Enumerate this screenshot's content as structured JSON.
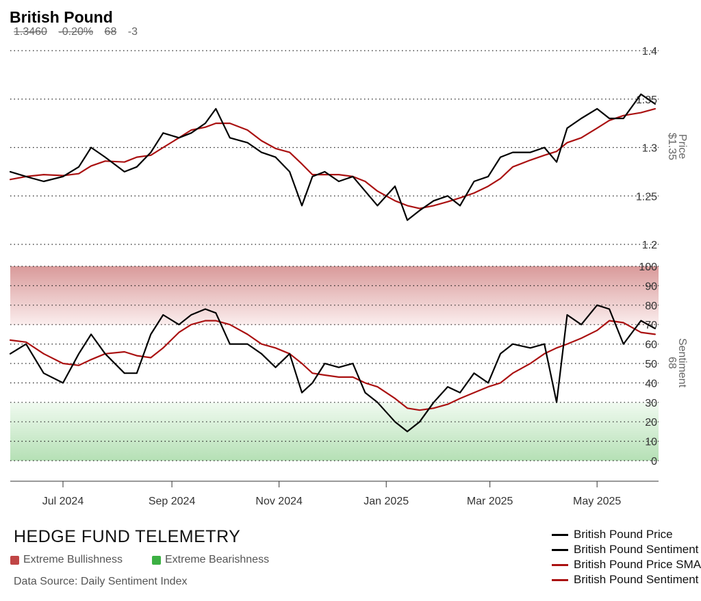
{
  "header": {
    "title": "British Pound",
    "price": "1.3460",
    "change": "-0.20%",
    "sentiment": "68",
    "sentiment_change": "-3"
  },
  "footer": {
    "brand": "HEDGE FUND TELEMETRY",
    "bullish_label": "Extreme Bullishness",
    "bearish_label": "Extreme Bearishness",
    "source": "Data Source: Daily Sentiment Index"
  },
  "colors": {
    "price": "#000000",
    "sma": "#aa1111",
    "bullish": "#c04545",
    "bearish": "#3cb043"
  },
  "legend": [
    {
      "label": "British Pound Price",
      "color": "#000000"
    },
    {
      "label": "British Pound Sentiment",
      "color": "#000000"
    },
    {
      "label": "British Pound Price SMA",
      "color": "#aa1111"
    },
    {
      "label": "British Pound Sentiment SMA",
      "color": "#aa1111"
    }
  ],
  "chart_data": [
    {
      "type": "line",
      "panel": "price",
      "axis_label": "Price",
      "axis_value": "$1.35",
      "ylim": [
        1.2,
        1.4
      ],
      "yticks": [
        "1.4",
        "1.35",
        "1.3",
        "1.25",
        "1.2"
      ],
      "x": [
        "2024-06-01",
        "2024-06-10",
        "2024-06-20",
        "2024-07-01",
        "2024-07-10",
        "2024-07-17",
        "2024-07-25",
        "2024-08-05",
        "2024-08-12",
        "2024-08-20",
        "2024-08-27",
        "2024-09-05",
        "2024-09-12",
        "2024-09-20",
        "2024-09-26",
        "2024-10-04",
        "2024-10-14",
        "2024-10-22",
        "2024-10-30",
        "2024-11-07",
        "2024-11-14",
        "2024-11-20",
        "2024-11-27",
        "2024-12-05",
        "2024-12-13",
        "2024-12-20",
        "2024-12-27",
        "2025-01-06",
        "2025-01-13",
        "2025-01-20",
        "2025-01-28",
        "2025-02-05",
        "2025-02-12",
        "2025-02-20",
        "2025-02-28",
        "2025-03-07",
        "2025-03-14",
        "2025-03-24",
        "2025-04-01",
        "2025-04-08",
        "2025-04-14",
        "2025-04-22",
        "2025-05-01",
        "2025-05-08",
        "2025-05-16",
        "2025-05-26",
        "2025-06-03"
      ],
      "series": [
        {
          "name": "British Pound Price",
          "color": "#000000",
          "values": [
            1.275,
            1.27,
            1.265,
            1.27,
            1.28,
            1.3,
            1.29,
            1.275,
            1.28,
            1.295,
            1.315,
            1.31,
            1.315,
            1.325,
            1.34,
            1.31,
            1.305,
            1.295,
            1.29,
            1.275,
            1.24,
            1.27,
            1.275,
            1.265,
            1.27,
            1.255,
            1.24,
            1.26,
            1.225,
            1.235,
            1.245,
            1.25,
            1.24,
            1.265,
            1.27,
            1.29,
            1.295,
            1.295,
            1.3,
            1.285,
            1.32,
            1.33,
            1.34,
            1.33,
            1.33,
            1.355,
            1.345
          ]
        },
        {
          "name": "Price SMA",
          "color": "#aa1111",
          "values": [
            1.267,
            1.27,
            1.272,
            1.271,
            1.273,
            1.281,
            1.286,
            1.285,
            1.29,
            1.292,
            1.3,
            1.31,
            1.318,
            1.321,
            1.325,
            1.325,
            1.318,
            1.307,
            1.299,
            1.295,
            1.283,
            1.272,
            1.272,
            1.272,
            1.27,
            1.265,
            1.255,
            1.245,
            1.24,
            1.237,
            1.24,
            1.244,
            1.248,
            1.253,
            1.26,
            1.268,
            1.28,
            1.287,
            1.292,
            1.296,
            1.305,
            1.31,
            1.32,
            1.328,
            1.333,
            1.336,
            1.34
          ]
        }
      ]
    },
    {
      "type": "line",
      "panel": "sentiment",
      "axis_label": "Sentiment",
      "axis_value": "68",
      "ylim": [
        0,
        100
      ],
      "yticks": [
        "100",
        "90",
        "80",
        "70",
        "60",
        "50",
        "40",
        "30",
        "20",
        "10",
        "0"
      ],
      "x": [
        "2024-06-01",
        "2024-06-10",
        "2024-06-20",
        "2024-07-01",
        "2024-07-10",
        "2024-07-17",
        "2024-07-25",
        "2024-08-05",
        "2024-08-12",
        "2024-08-20",
        "2024-08-27",
        "2024-09-05",
        "2024-09-12",
        "2024-09-20",
        "2024-09-26",
        "2024-10-04",
        "2024-10-14",
        "2024-10-22",
        "2024-10-30",
        "2024-11-07",
        "2024-11-14",
        "2024-11-20",
        "2024-11-27",
        "2024-12-05",
        "2024-12-13",
        "2024-12-20",
        "2024-12-27",
        "2025-01-06",
        "2025-01-13",
        "2025-01-20",
        "2025-01-28",
        "2025-02-05",
        "2025-02-12",
        "2025-02-20",
        "2025-02-28",
        "2025-03-07",
        "2025-03-14",
        "2025-03-24",
        "2025-04-01",
        "2025-04-08",
        "2025-04-14",
        "2025-04-22",
        "2025-05-01",
        "2025-05-08",
        "2025-05-16",
        "2025-05-26",
        "2025-06-03"
      ],
      "series": [
        {
          "name": "British Pound Sentiment",
          "color": "#000000",
          "values": [
            55,
            60,
            45,
            40,
            55,
            65,
            55,
            45,
            45,
            65,
            75,
            70,
            75,
            78,
            76,
            60,
            60,
            55,
            48,
            55,
            35,
            40,
            50,
            48,
            50,
            35,
            30,
            20,
            15,
            20,
            30,
            38,
            35,
            45,
            40,
            55,
            60,
            58,
            60,
            30,
            75,
            70,
            80,
            78,
            60,
            72,
            68
          ]
        },
        {
          "name": "Sentiment SMA",
          "color": "#aa1111",
          "values": [
            62,
            61,
            55,
            50,
            49,
            52,
            55,
            56,
            54,
            53,
            58,
            66,
            70,
            72,
            72,
            70,
            65,
            60,
            58,
            55,
            50,
            45,
            44,
            43,
            43,
            40,
            38,
            32,
            27,
            26,
            27,
            29,
            32,
            35,
            38,
            40,
            45,
            50,
            55,
            58,
            60,
            63,
            67,
            72,
            71,
            66,
            65
          ]
        }
      ]
    }
  ],
  "x_axis": {
    "labels": [
      "Jul 2024",
      "Sep 2024",
      "Nov 2024",
      "Jan 2025",
      "Mar 2025",
      "May 2025"
    ]
  }
}
